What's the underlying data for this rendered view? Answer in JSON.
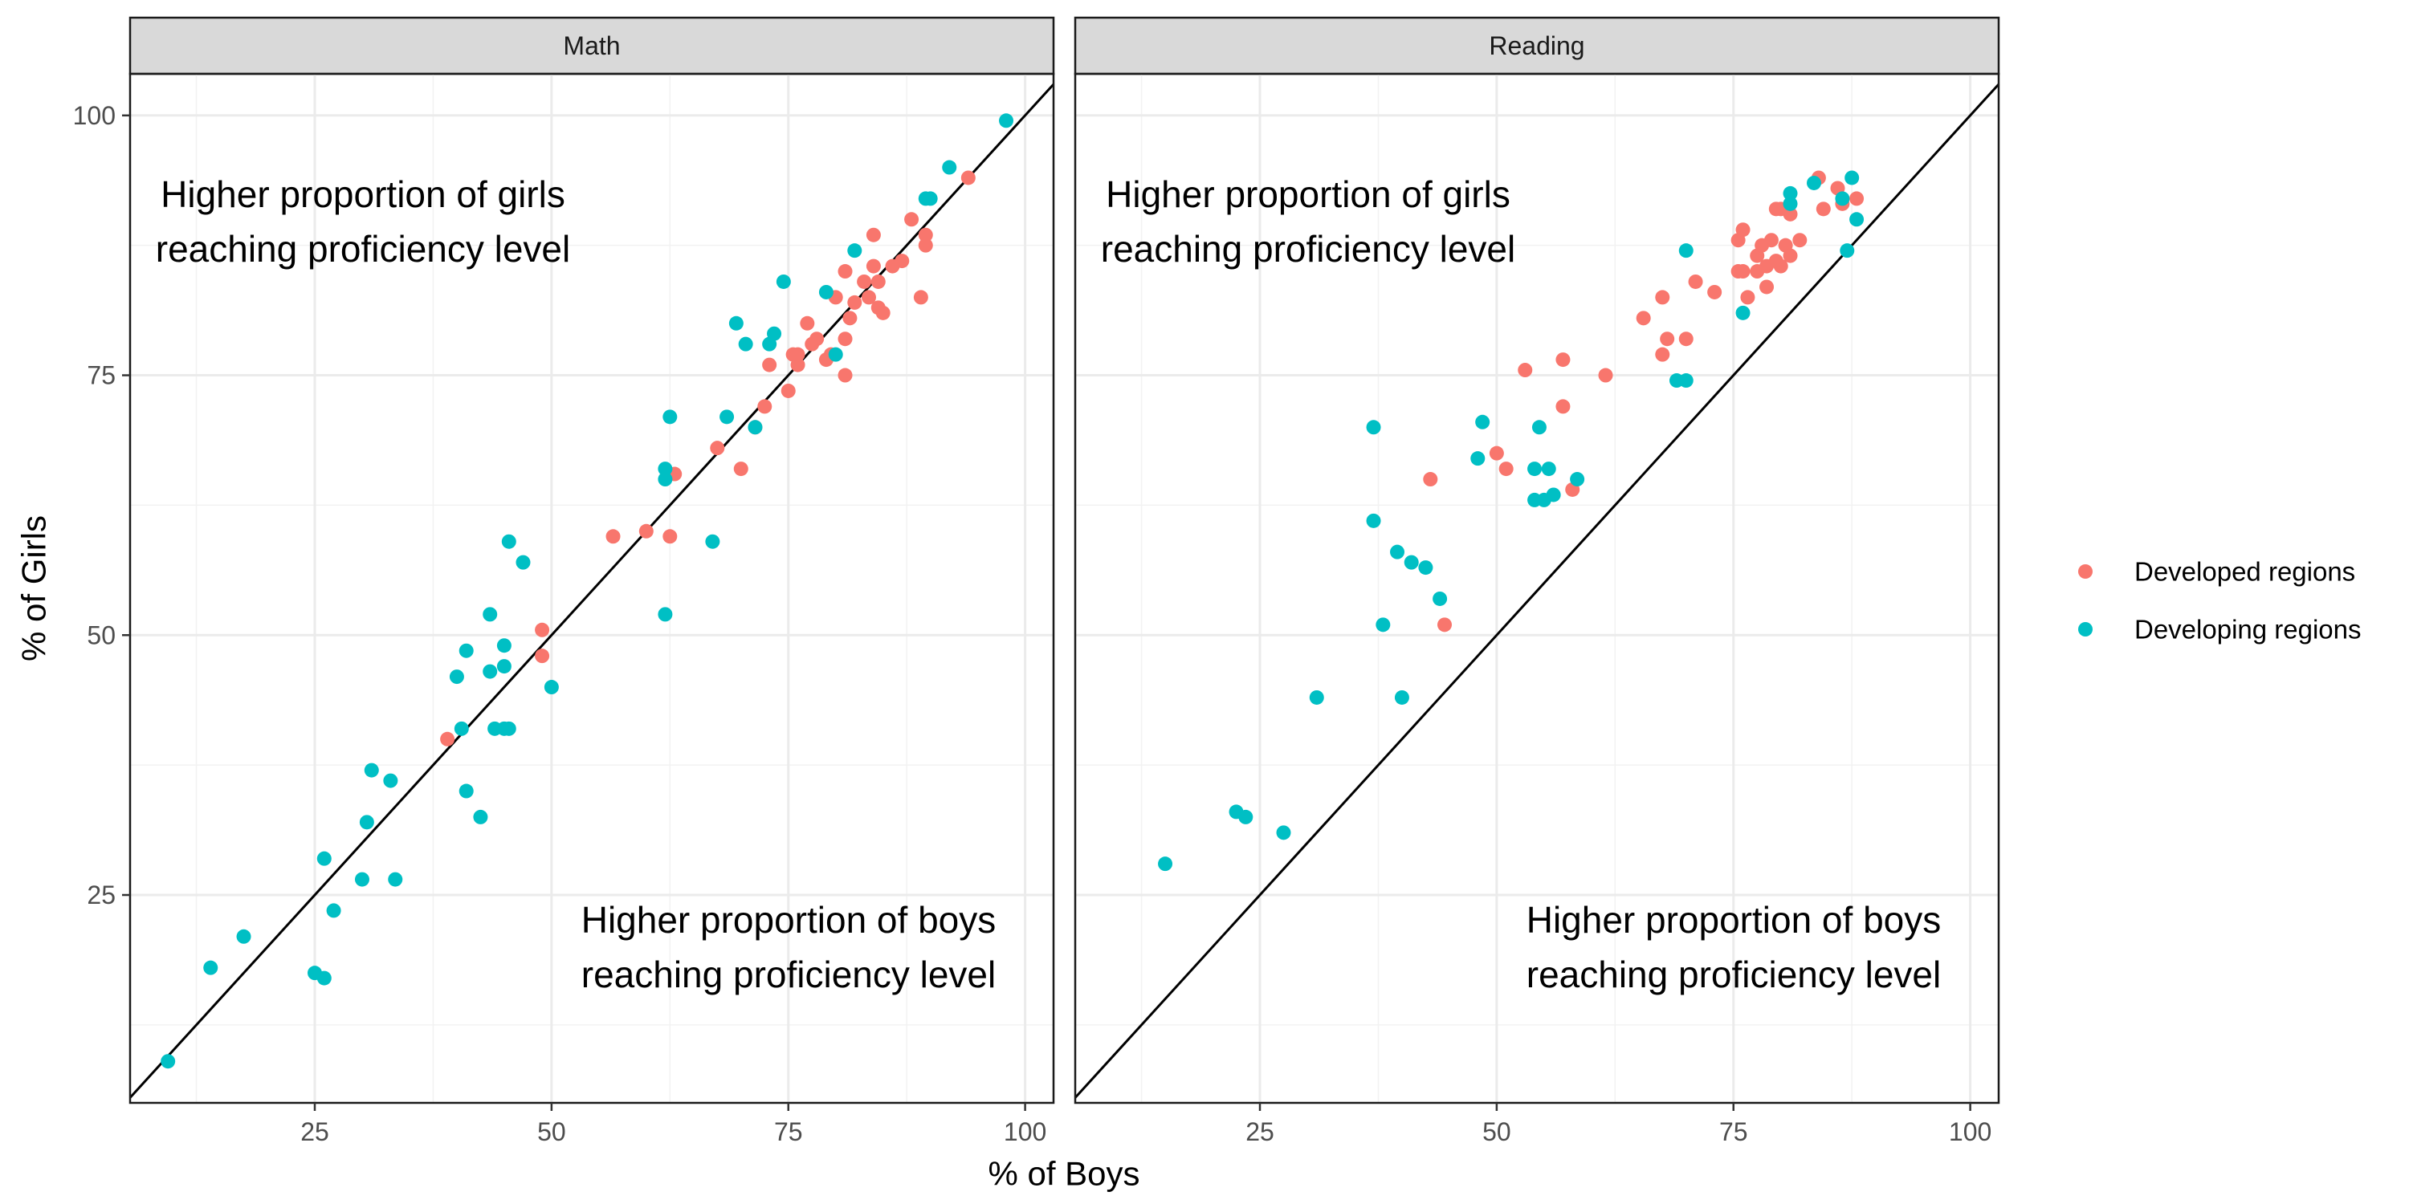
{
  "chart_data": {
    "type": "scatter",
    "xlabel": "% of Boys",
    "ylabel": "% of Girls",
    "xlim": [
      5.5,
      103
    ],
    "ylim": [
      5,
      104
    ],
    "x_ticks": [
      25,
      50,
      75,
      100
    ],
    "y_ticks": [
      25,
      50,
      75,
      100
    ],
    "grid": true,
    "legend_position": "right",
    "reference_line": "y = x",
    "colors": {
      "developed": "#F8766D",
      "developing": "#00BFC4"
    },
    "legend": [
      {
        "key": "developed",
        "label": "Developed regions"
      },
      {
        "key": "developing",
        "label": "Developing regions"
      }
    ],
    "annotations": {
      "girls": [
        "Higher proportion of girls",
        "reaching proficiency level"
      ],
      "boys": [
        "Higher proportion of boys",
        "reaching proficiency level"
      ]
    },
    "panels": [
      {
        "title": "Math",
        "series": [
          {
            "key": "developed",
            "points": [
              [
                39,
                40
              ],
              [
                49,
                48
              ],
              [
                49,
                50.5
              ],
              [
                56.5,
                59.5
              ],
              [
                60,
                60
              ],
              [
                62.5,
                59.5
              ],
              [
                63,
                65.5
              ],
              [
                67.5,
                68
              ],
              [
                70,
                66
              ],
              [
                71.5,
                70
              ],
              [
                72.5,
                72
              ],
              [
                73,
                76
              ],
              [
                75,
                73.5
              ],
              [
                75.5,
                77
              ],
              [
                76,
                76
              ],
              [
                77,
                80
              ],
              [
                77.5,
                78
              ],
              [
                78,
                78.5
              ],
              [
                79,
                76.5
              ],
              [
                79.5,
                77
              ],
              [
                80,
                82.5
              ],
              [
                81,
                75
              ],
              [
                81,
                78.5
              ],
              [
                81.5,
                80.5
              ],
              [
                82,
                82
              ],
              [
                83,
                84
              ],
              [
                83.5,
                82.5
              ],
              [
                84,
                85.5
              ],
              [
                84.5,
                81.5
              ],
              [
                84.5,
                84
              ],
              [
                84,
                88.5
              ],
              [
                85,
                81
              ],
              [
                86,
                85.5
              ],
              [
                87,
                86
              ],
              [
                88,
                90
              ],
              [
                89,
                82.5
              ],
              [
                89.5,
                87.5
              ],
              [
                89.5,
                88.5
              ],
              [
                94,
                94
              ],
              [
                81,
                85
              ],
              [
                76,
                77
              ]
            ]
          },
          {
            "key": "developing",
            "points": [
              [
                9.5,
                9
              ],
              [
                14,
                18
              ],
              [
                17.5,
                21
              ],
              [
                25,
                17.5
              ],
              [
                26,
                17
              ],
              [
                26,
                28.5
              ],
              [
                27,
                23.5
              ],
              [
                30,
                26.5
              ],
              [
                30.5,
                32
              ],
              [
                31,
                37
              ],
              [
                33,
                36
              ],
              [
                33.5,
                26.5
              ],
              [
                40,
                46
              ],
              [
                40.5,
                41
              ],
              [
                41,
                35
              ],
              [
                41,
                48.5
              ],
              [
                42.5,
                32.5
              ],
              [
                43.5,
                46.5
              ],
              [
                43.5,
                52
              ],
              [
                44,
                41
              ],
              [
                45,
                41
              ],
              [
                45.5,
                41
              ],
              [
                45,
                47
              ],
              [
                45,
                49
              ],
              [
                45.5,
                59
              ],
              [
                47,
                57
              ],
              [
                50,
                45
              ],
              [
                62,
                65
              ],
              [
                62,
                66
              ],
              [
                62,
                52
              ],
              [
                62.5,
                71
              ],
              [
                67,
                59
              ],
              [
                68.5,
                71
              ],
              [
                69.5,
                80
              ],
              [
                70.5,
                78
              ],
              [
                71.5,
                70
              ],
              [
                73,
                78
              ],
              [
                73.5,
                79
              ],
              [
                74.5,
                84
              ],
              [
                79,
                83
              ],
              [
                80,
                77
              ],
              [
                82,
                87
              ],
              [
                89.5,
                92
              ],
              [
                90,
                92
              ],
              [
                92,
                95
              ],
              [
                98,
                99.5
              ]
            ]
          }
        ]
      },
      {
        "title": "Reading",
        "series": [
          {
            "key": "developed",
            "points": [
              [
                43,
                65
              ],
              [
                44.5,
                51
              ],
              [
                50,
                67.5
              ],
              [
                51,
                66
              ],
              [
                53,
                75.5
              ],
              [
                57,
                72
              ],
              [
                57,
                76.5
              ],
              [
                58,
                64
              ],
              [
                61.5,
                75
              ],
              [
                65.5,
                80.5
              ],
              [
                67.5,
                77
              ],
              [
                67.5,
                82.5
              ],
              [
                68,
                78.5
              ],
              [
                70,
                78.5
              ],
              [
                71,
                84
              ],
              [
                73,
                83
              ],
              [
                75.5,
                85
              ],
              [
                75.5,
                88
              ],
              [
                76,
                89
              ],
              [
                76,
                85
              ],
              [
                76.5,
                82.5
              ],
              [
                77.5,
                86.5
              ],
              [
                77.5,
                85
              ],
              [
                78,
                87.5
              ],
              [
                78.5,
                83.5
              ],
              [
                78.5,
                85.5
              ],
              [
                79,
                88
              ],
              [
                79.5,
                86
              ],
              [
                79.5,
                91
              ],
              [
                80,
                85.5
              ],
              [
                80,
                91
              ],
              [
                80.5,
                87.5
              ],
              [
                81,
                90.5
              ],
              [
                81,
                86.5
              ],
              [
                82,
                88
              ],
              [
                84,
                94
              ],
              [
                84.5,
                91
              ],
              [
                86,
                93
              ],
              [
                86.5,
                91.5
              ],
              [
                88,
                92
              ]
            ]
          },
          {
            "key": "developing",
            "points": [
              [
                15,
                28
              ],
              [
                22.5,
                33
              ],
              [
                23.5,
                32.5
              ],
              [
                27.5,
                31
              ],
              [
                31,
                44
              ],
              [
                37,
                70
              ],
              [
                37,
                61
              ],
              [
                38,
                51
              ],
              [
                39.5,
                58
              ],
              [
                41,
                57
              ],
              [
                42.5,
                56.5
              ],
              [
                44,
                53.5
              ],
              [
                40,
                44
              ],
              [
                48,
                67
              ],
              [
                48.5,
                70.5
              ],
              [
                54,
                63
              ],
              [
                54,
                66
              ],
              [
                54.5,
                70
              ],
              [
                55,
                63
              ],
              [
                55.5,
                66
              ],
              [
                56,
                63.5
              ],
              [
                58.5,
                65
              ],
              [
                69,
                74.5
              ],
              [
                70,
                74.5
              ],
              [
                70,
                87
              ],
              [
                76,
                81
              ],
              [
                81,
                91.5
              ],
              [
                81,
                92.5
              ],
              [
                83.5,
                93.5
              ],
              [
                86.5,
                92
              ],
              [
                87,
                87
              ],
              [
                87.5,
                94
              ],
              [
                88,
                90
              ]
            ]
          }
        ]
      }
    ]
  }
}
